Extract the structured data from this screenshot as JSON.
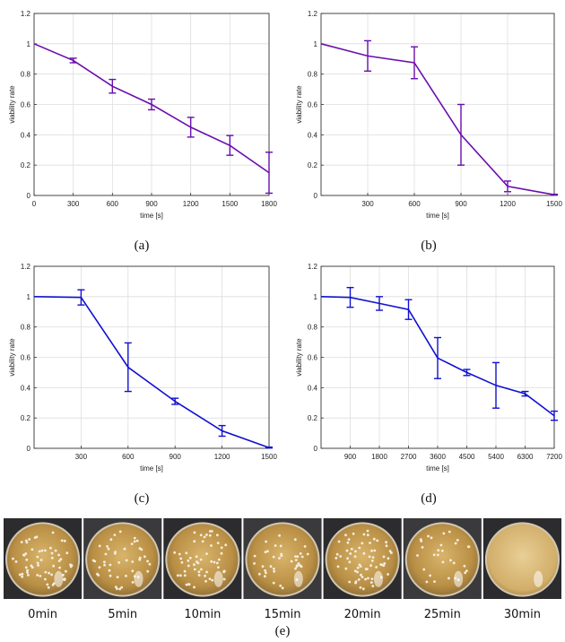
{
  "chart_data": [
    {
      "type": "line",
      "panel": "(a)",
      "xlabel": "time [s]",
      "ylabel": "viability rate",
      "xlim": [
        0,
        1800
      ],
      "ylim": [
        0,
        1.2
      ],
      "xticks": [
        "0",
        "300",
        "600",
        "900",
        "1200",
        "1500",
        "1800"
      ],
      "yticks": [
        "0",
        "0.2",
        "0.4",
        "0.6",
        "0.8",
        "1",
        "1.2"
      ],
      "grid": true,
      "color": "#6a0dad",
      "x": [
        0,
        300,
        600,
        900,
        1200,
        1500,
        1800
      ],
      "y": [
        1.0,
        0.89,
        0.72,
        0.6,
        0.45,
        0.33,
        0.15
      ],
      "err": [
        0,
        0.015,
        0.045,
        0.035,
        0.065,
        0.065,
        0.135
      ]
    },
    {
      "type": "line",
      "panel": "(b)",
      "xlabel": "time [s]",
      "ylabel": "viability rate",
      "xlim": [
        0,
        1500
      ],
      "ylim": [
        0,
        1.2
      ],
      "xticks": [
        "300",
        "600",
        "900",
        "1200",
        "1500"
      ],
      "yticks": [
        "0",
        "0.2",
        "0.4",
        "0.6",
        "0.8",
        "1",
        "1.2"
      ],
      "grid": true,
      "color": "#6a0dad",
      "x": [
        0,
        300,
        600,
        900,
        1200,
        1500
      ],
      "y": [
        1.0,
        0.92,
        0.875,
        0.4,
        0.06,
        0.005
      ],
      "err": [
        0,
        0.1,
        0.105,
        0.2,
        0.035,
        0.003
      ]
    },
    {
      "type": "line",
      "panel": "(c)",
      "xlabel": "time [s]",
      "ylabel": "viability rate",
      "xlim": [
        0,
        1500
      ],
      "ylim": [
        0,
        1.2
      ],
      "xticks": [
        "300",
        "600",
        "900",
        "1200",
        "1500"
      ],
      "yticks": [
        "0",
        "0.2",
        "0.4",
        "0.6",
        "0.8",
        "1",
        "1.2"
      ],
      "grid": true,
      "color": "#1010d0",
      "x": [
        0,
        300,
        600,
        900,
        1200,
        1500
      ],
      "y": [
        1.0,
        0.995,
        0.535,
        0.31,
        0.115,
        0.005
      ],
      "err": [
        0,
        0.05,
        0.16,
        0.02,
        0.035,
        0.003
      ]
    },
    {
      "type": "line",
      "panel": "(d)",
      "xlabel": "time [s]",
      "ylabel": "viability rate",
      "xlim": [
        0,
        7200
      ],
      "ylim": [
        0,
        1.2
      ],
      "xticks": [
        "900",
        "1800",
        "2700",
        "3600",
        "4500",
        "5400",
        "6300",
        "7200"
      ],
      "yticks": [
        "0",
        "0.2",
        "0.4",
        "0.6",
        "0.8",
        "1",
        "1.2"
      ],
      "grid": true,
      "color": "#1010d0",
      "x": [
        0,
        900,
        1800,
        2700,
        3600,
        4500,
        5400,
        6300,
        7200
      ],
      "y": [
        1.0,
        0.995,
        0.955,
        0.915,
        0.595,
        0.5,
        0.415,
        0.36,
        0.215
      ],
      "err": [
        0,
        0.065,
        0.045,
        0.065,
        0.135,
        0.02,
        0.15,
        0.015,
        0.03
      ]
    }
  ],
  "captions": [
    "(a)",
    "(b)",
    "(c)",
    "(d)",
    "(e)"
  ],
  "plates": {
    "labels": [
      "0min",
      "5min",
      "10min",
      "15min",
      "20min",
      "25min",
      "30min"
    ],
    "colonies": [
      60,
      45,
      55,
      40,
      65,
      30,
      0
    ]
  }
}
